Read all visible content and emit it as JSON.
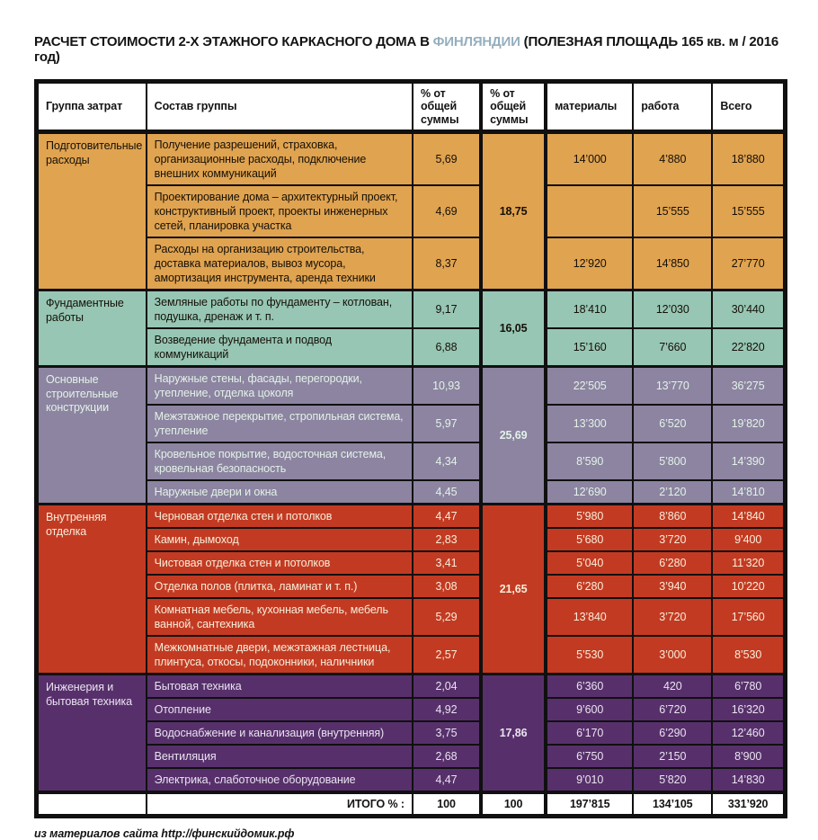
{
  "title": {
    "prefix": "РАСЧЕТ СТОИМОСТИ 2-Х ЭТАЖНОГО КАРКАСНОГО ДОМА В ",
    "highlight": "ФИНЛЯНДИИ",
    "suffix": " (ПОЛЕЗНАЯ ПЛОЩАДЬ 165 кв. м / 2016 год)",
    "highlight_color": "#95AFBE"
  },
  "source": "из материалов сайта http://финскийдомик.рф",
  "colors": {
    "border": "#101010",
    "header_bg": "#ffffff",
    "title_highlight": "#95AFBE"
  },
  "chart_data": {
    "type": "table",
    "title": "РАСЧЕТ СТОИМОСТИ 2-Х ЭТАЖНОГО КАРКАСНОГО ДОМА В ФИНЛЯНДИИ (ПОЛЕЗНАЯ ПЛОЩАДЬ 165 кв. м / 2016 год)",
    "columns": [
      "Группа затрат",
      "Состав группы",
      "% от общей суммы",
      "% от общей суммы",
      "материалы",
      "работа",
      "Всего"
    ],
    "groups": [
      {
        "name": "Подготовительные расходы",
        "group_percent": "18,75",
        "color": "#E0A350",
        "text_color": "#151008",
        "rows": [
          {
            "composition": "Получение разрешений, страховка, организационные расходы, подключение внешних коммуникаций",
            "percent": "5,69",
            "materials": "14’000",
            "work": "4’880",
            "total": "18’880"
          },
          {
            "composition": "Проектирование дома – архитектурный проект, конструктивный проект, проекты инженерных сетей, планировка участка",
            "percent": "4,69",
            "materials": "",
            "work": "15’555",
            "total": "15’555"
          },
          {
            "composition": "Расходы на организацию строительства, доставка материалов, вывоз мусора, амортизация инструмента, аренда техники",
            "percent": "8,37",
            "materials": "12’920",
            "work": "14’850",
            "total": "27’770"
          }
        ]
      },
      {
        "name": "Фундаментные работы",
        "group_percent": "16,05",
        "color": "#97C6B4",
        "text_color": "#151008",
        "rows": [
          {
            "composition": "Земляные работы по фундаменту – котлован, подушка, дренаж и т. п.",
            "percent": "9,17",
            "materials": "18’410",
            "work": "12’030",
            "total": "30’440"
          },
          {
            "composition": "Возведение фундамента и подвод коммуникаций",
            "percent": "6,88",
            "materials": "15’160",
            "work": "7’660",
            "total": "22’820"
          }
        ]
      },
      {
        "name": "Основные строительные конструкции",
        "group_percent": "25,69",
        "color": "#8C84A0",
        "text_color": "#E3F2E9",
        "rows": [
          {
            "composition": "Наружные стены, фасады, перегородки, утепление, отделка цоколя",
            "percent": "10,93",
            "materials": "22’505",
            "work": "13’770",
            "total": "36’275"
          },
          {
            "composition": "Межэтажное перекрытие, стропильная система, утепление",
            "percent": "5,97",
            "materials": "13’300",
            "work": "6’520",
            "total": "19’820"
          },
          {
            "composition": "Кровельное покрытие, водосточная система, кровельная безопасность",
            "percent": "4,34",
            "materials": "8’590",
            "work": "5’800",
            "total": "14’390"
          },
          {
            "composition": "Наружные двери и окна",
            "percent": "4,45",
            "materials": "12’690",
            "work": "2’120",
            "total": "14’810"
          }
        ]
      },
      {
        "name": "Внутренняя отделка",
        "group_percent": "21,65",
        "color": "#C33A22",
        "text_color": "#F6EEDA",
        "rows": [
          {
            "composition": "Черновая отделка стен и потолков",
            "percent": "4,47",
            "materials": "5’980",
            "work": "8’860",
            "total": "14’840"
          },
          {
            "composition": "Камин, дымоход",
            "percent": "2,83",
            "materials": "5’680",
            "work": "3’720",
            "total": "9’400"
          },
          {
            "composition": "Чистовая отделка стен и потолков",
            "percent": "3,41",
            "materials": "5’040",
            "work": "6’280",
            "total": "11’320"
          },
          {
            "composition": "Отделка полов (плитка, ламинат и т. п.)",
            "percent": "3,08",
            "materials": "6’280",
            "work": "3’940",
            "total": "10’220"
          },
          {
            "composition": "Комнатная мебель, кухонная мебель, мебель ванной, сантехника",
            "percent": "5,29",
            "materials": "13’840",
            "work": "3’720",
            "total": "17’560"
          },
          {
            "composition": "Межкомнатные двери, межэтажная лестница, плинтуса, откосы, подоконники, наличники",
            "percent": "2,57",
            "materials": "5’530",
            "work": "3’000",
            "total": "8’530"
          }
        ]
      },
      {
        "name": "Инженерия и бытовая техника",
        "group_percent": "17,86",
        "color": "#57306B",
        "text_color": "#E9E3F0",
        "rows": [
          {
            "composition": "Бытовая техника",
            "percent": "2,04",
            "materials": "6’360",
            "work": "420",
            "total": "6’780"
          },
          {
            "composition": "Отопление",
            "percent": "4,92",
            "materials": "9’600",
            "work": "6’720",
            "total": "16’320"
          },
          {
            "composition": "Водоснабжение и канализация (внутренняя)",
            "percent": "3,75",
            "materials": "6’170",
            "work": "6’290",
            "total": "12’460"
          },
          {
            "composition": "Вентиляция",
            "percent": "2,68",
            "materials": "6’750",
            "work": "2’150",
            "total": "8’900"
          },
          {
            "composition": "Электрика, слаботочное оборудование",
            "percent": "4,47",
            "materials": "9’010",
            "work": "5’820",
            "total": "14’830"
          }
        ]
      }
    ],
    "totals": {
      "label": "ИТОГО % :",
      "percent_col1": "100",
      "percent_col2": "100",
      "materials": "197’815",
      "work": "134’105",
      "total": "331’920"
    }
  }
}
